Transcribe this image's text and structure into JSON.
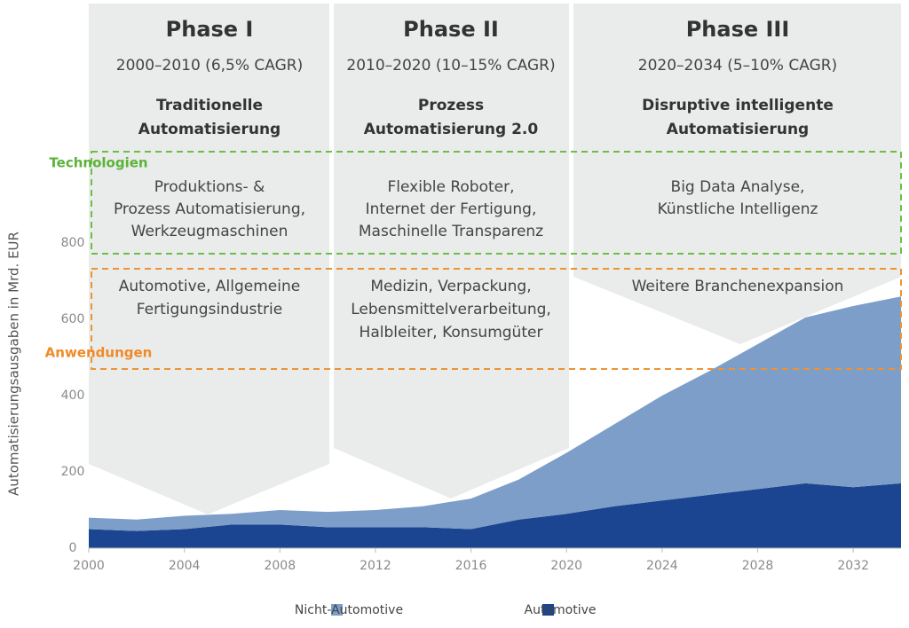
{
  "phases": [
    {
      "title": "Phase I",
      "period": "2000–2010 (6,5% CAGR)",
      "focus": [
        "Traditionelle",
        "Automatisierung"
      ],
      "technologies": [
        "Produktions- &",
        "Prozess Automatisierung,",
        "Werkzeugmaschinen"
      ],
      "applications": [
        "Automotive, Allgemeine",
        "Fertigungsindustrie"
      ]
    },
    {
      "title": "Phase II",
      "period": "2010–2020 (10–15% CAGR)",
      "focus": [
        "Prozess",
        "Automatisierung 2.0"
      ],
      "technologies": [
        "Flexible Roboter,",
        "Internet der Fertigung,",
        "Maschinelle Transparenz"
      ],
      "applications": [
        "Medizin, Verpackung,",
        "Lebensmittelverarbeitung,",
        "Halbleiter, Konsumgüter"
      ]
    },
    {
      "title": "Phase III",
      "period": "2020–2034 (5–10% CAGR)",
      "focus": [
        "Disruptive intelligente",
        "Automatisierung"
      ],
      "technologies": [
        "Big Data Analyse,",
        "Künstliche Intelligenz"
      ],
      "applications": [
        "Weitere Branchenexpansion"
      ]
    }
  ],
  "technologies_label": "Technologien",
  "applications_label": "Anwendungen",
  "chart_data": {
    "type": "area",
    "stacked": true,
    "y_label": "Automatisierungsausgaben in Mrd. EUR",
    "x": [
      2000,
      2002,
      2004,
      2006,
      2008,
      2010,
      2012,
      2014,
      2016,
      2018,
      2020,
      2022,
      2024,
      2026,
      2028,
      2030,
      2032,
      2034
    ],
    "series": [
      {
        "name": "Nicht-Automotive",
        "color": "#7c9ec8",
        "values": [
          30,
          30,
          35,
          28,
          38,
          40,
          45,
          55,
          80,
          105,
          160,
          215,
          275,
          325,
          380,
          435,
          475,
          490
        ]
      },
      {
        "name": "Automotive",
        "color": "#1b4590",
        "values": [
          50,
          45,
          50,
          62,
          62,
          55,
          55,
          55,
          50,
          75,
          90,
          110,
          125,
          140,
          155,
          170,
          160,
          170
        ]
      }
    ],
    "xlim": [
      2000,
      2034
    ],
    "xticks": [
      2000,
      2004,
      2008,
      2012,
      2016,
      2020,
      2024,
      2028,
      2032
    ],
    "ylim": [
      0,
      800
    ],
    "yticks": [
      0,
      200,
      400,
      600,
      800
    ]
  }
}
